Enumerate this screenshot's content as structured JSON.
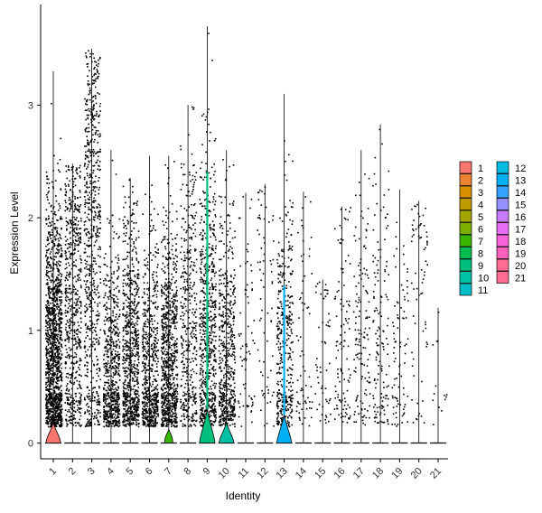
{
  "chart_data": {
    "type": "violin",
    "title": "",
    "xlabel": "Identity",
    "ylabel": "Expression Level",
    "ylim": [
      -0.15,
      3.9
    ],
    "yticks": [
      0,
      1,
      2,
      3
    ],
    "grid": false,
    "legend": {
      "placement": "right",
      "columns": 2
    },
    "categories": [
      "1",
      "2",
      "3",
      "4",
      "5",
      "6",
      "7",
      "8",
      "9",
      "10",
      "11",
      "12",
      "13",
      "14",
      "15",
      "16",
      "17",
      "18",
      "19",
      "20",
      "21"
    ],
    "colors": [
      "#F8766D",
      "#EA8331",
      "#D89000",
      "#C09B00",
      "#A3A500",
      "#7CAE00",
      "#39B600",
      "#00BB4E",
      "#00BF7D",
      "#00C1A3",
      "#00BFC4",
      "#00BAE0",
      "#00B0F6",
      "#35A2FF",
      "#9590FF",
      "#C77CFF",
      "#E76BF3",
      "#FA62DB",
      "#FF62BC",
      "#FF6C91",
      "#FF6C91"
    ],
    "series": [
      {
        "name": "1",
        "max": 3.3,
        "density": 1.0,
        "median": 0.8,
        "violin_width": 0.9,
        "violin_height": 0.18
      },
      {
        "name": "2",
        "max": 2.48,
        "density": 0.45,
        "median": 1.2,
        "violin_width": 0.0,
        "violin_height": 0.0
      },
      {
        "name": "3",
        "max": 3.5,
        "density": 0.5,
        "median": 1.8,
        "violin_width": 0.0,
        "violin_height": 0.0
      },
      {
        "name": "4",
        "max": 2.6,
        "density": 0.45,
        "median": 0.6,
        "violin_width": 0.0,
        "violin_height": 0.0
      },
      {
        "name": "5",
        "max": 2.35,
        "density": 0.55,
        "median": 0.7,
        "violin_width": 0.0,
        "violin_height": 0.0
      },
      {
        "name": "6",
        "max": 2.55,
        "density": 0.45,
        "median": 0.6,
        "violin_width": 0.0,
        "violin_height": 0.0
      },
      {
        "name": "7",
        "max": 2.55,
        "density": 0.6,
        "median": 0.7,
        "violin_width": 0.5,
        "violin_height": 0.12
      },
      {
        "name": "8",
        "max": 3.0,
        "density": 0.3,
        "median": 1.0,
        "violin_width": 0.0,
        "violin_height": 0.0
      },
      {
        "name": "9",
        "max": 3.7,
        "density": 0.5,
        "median": 1.0,
        "violin_width": 0.95,
        "violin_height": 0.3
      },
      {
        "name": "10",
        "max": 2.6,
        "density": 0.4,
        "median": 0.7,
        "violin_width": 0.9,
        "violin_height": 0.18
      },
      {
        "name": "11",
        "max": 2.22,
        "density": 0.05,
        "median": 0.8,
        "violin_width": 0.0,
        "violin_height": 0.0
      },
      {
        "name": "12",
        "max": 2.3,
        "density": 0.05,
        "median": 1.2,
        "violin_width": 0.0,
        "violin_height": 0.0
      },
      {
        "name": "13",
        "max": 3.1,
        "density": 0.3,
        "median": 0.8,
        "violin_width": 0.9,
        "violin_height": 0.25
      },
      {
        "name": "14",
        "max": 2.23,
        "density": 0.05,
        "median": 1.0,
        "violin_width": 0.0,
        "violin_height": 0.0
      },
      {
        "name": "15",
        "max": 1.45,
        "density": 0.04,
        "median": 0.7,
        "violin_width": 0.0,
        "violin_height": 0.0
      },
      {
        "name": "16",
        "max": 2.1,
        "density": 0.08,
        "median": 0.8,
        "violin_width": 0.0,
        "violin_height": 0.0
      },
      {
        "name": "17",
        "max": 2.6,
        "density": 0.1,
        "median": 0.9,
        "violin_width": 0.0,
        "violin_height": 0.0
      },
      {
        "name": "18",
        "max": 2.83,
        "density": 0.1,
        "median": 0.9,
        "violin_width": 0.0,
        "violin_height": 0.0
      },
      {
        "name": "19",
        "max": 2.25,
        "density": 0.06,
        "median": 0.7,
        "violin_width": 0.0,
        "violin_height": 0.0
      },
      {
        "name": "20",
        "max": 2.15,
        "density": 0.05,
        "median": 1.4,
        "violin_width": 0.0,
        "violin_height": 0.0
      },
      {
        "name": "21",
        "max": 1.2,
        "density": 0.01,
        "median": 0.6,
        "violin_width": 0.0,
        "violin_height": 0.0
      }
    ]
  }
}
